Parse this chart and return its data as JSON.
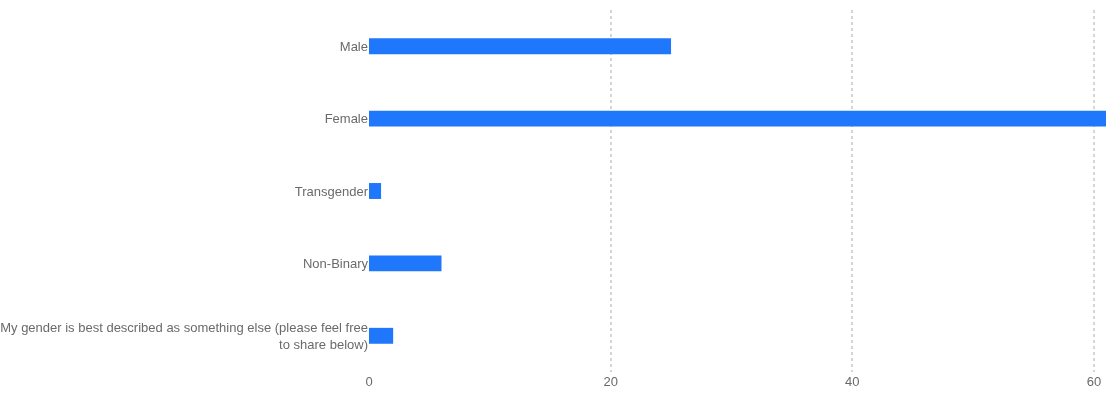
{
  "chart_data": {
    "type": "bar",
    "orientation": "horizontal",
    "categories": [
      "Male",
      "Female",
      "Transgender",
      "Non-Binary",
      "My gender is best described as something else (please feel free to share below)"
    ],
    "values": [
      25,
      61,
      1,
      6,
      2
    ],
    "color": "#1f77fb",
    "xlim": [
      0,
      61
    ],
    "xticks": [
      0,
      20,
      40,
      60
    ],
    "grid": "x"
  }
}
